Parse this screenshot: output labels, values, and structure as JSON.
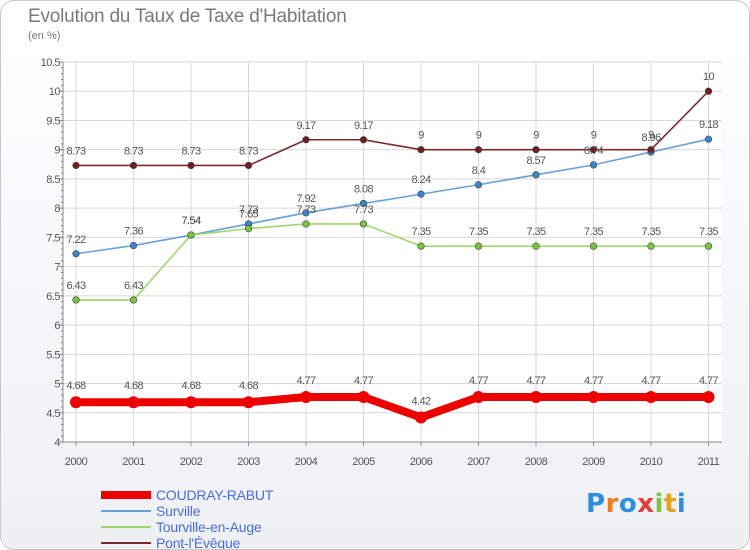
{
  "header": {
    "title": "Evolution du Taux de Taxe d'Habitation",
    "subtitle": "(en %)"
  },
  "logo": {
    "text": "Proxiti",
    "colors": [
      "#2f8fdd",
      "#ef7b1c",
      "#2f8fdd",
      "#e23d3d",
      "#7cc142",
      "#e5a21b",
      "#2f8fdd"
    ]
  },
  "chart_data": {
    "type": "line",
    "title": "Evolution du Taux de Taxe d'Habitation",
    "ylabel": "(en %)",
    "xlabel": "",
    "x": [
      "2000",
      "2001",
      "2002",
      "2003",
      "2004",
      "2005",
      "2006",
      "2007",
      "2008",
      "2009",
      "2010",
      "2011"
    ],
    "ylim": [
      4,
      10.5
    ],
    "yticks": [
      "4",
      "4.5",
      "5",
      "5.5",
      "6",
      "6.5",
      "7",
      "7.5",
      "8",
      "8.5",
      "9",
      "9.5",
      "10",
      "10.5"
    ],
    "grid": true,
    "legend_position": "bottom-left",
    "series": [
      {
        "name": "COUDRAY-RABUT",
        "color": "#ee0000",
        "values": [
          4.68,
          4.68,
          4.68,
          4.68,
          4.77,
          4.77,
          4.42,
          4.77,
          4.77,
          4.77,
          4.77,
          4.77
        ],
        "labels": [
          "4.68",
          "4.68",
          "4.68",
          "4.68",
          "4.77",
          "4.77",
          "4.42",
          "4.77",
          "4.77",
          "4.77",
          "4.77",
          "4.77"
        ]
      },
      {
        "name": "Surville",
        "color": "#6aa0d8",
        "marker": "#3a86cc",
        "values": [
          7.22,
          7.36,
          7.54,
          7.73,
          7.92,
          8.08,
          8.24,
          8.4,
          8.57,
          8.74,
          8.96,
          9.18
        ],
        "labels": [
          "7.22",
          "7.36",
          "7.54",
          "7.73",
          "7.92",
          "8.08",
          "8.24",
          "8.4",
          "8.57",
          "8.74",
          "8.96",
          "9.18"
        ]
      },
      {
        "name": "Tourville-en-Auge",
        "color": "#9ed86a",
        "marker": "#77c63c",
        "values": [
          6.43,
          6.43,
          7.54,
          7.65,
          7.73,
          7.73,
          7.35,
          7.35,
          7.35,
          7.35,
          7.35,
          7.35
        ],
        "labels": [
          "6.43",
          "6.43",
          "7.54",
          "7.65",
          "7.73",
          "7.73",
          "7.35",
          "7.35",
          "7.35",
          "7.35",
          "7.35",
          "7.35"
        ]
      },
      {
        "name": "Pont-l'Évêque",
        "color": "#7b2b2b",
        "marker": "#6e1f1f",
        "values": [
          8.73,
          8.73,
          8.73,
          8.73,
          9.17,
          9.17,
          9,
          9,
          9,
          9,
          9,
          10
        ],
        "labels": [
          "8.73",
          "8.73",
          "8.73",
          "8.73",
          "9.17",
          "9.17",
          "9",
          "9",
          "9",
          "9",
          "9",
          "10"
        ]
      }
    ]
  }
}
